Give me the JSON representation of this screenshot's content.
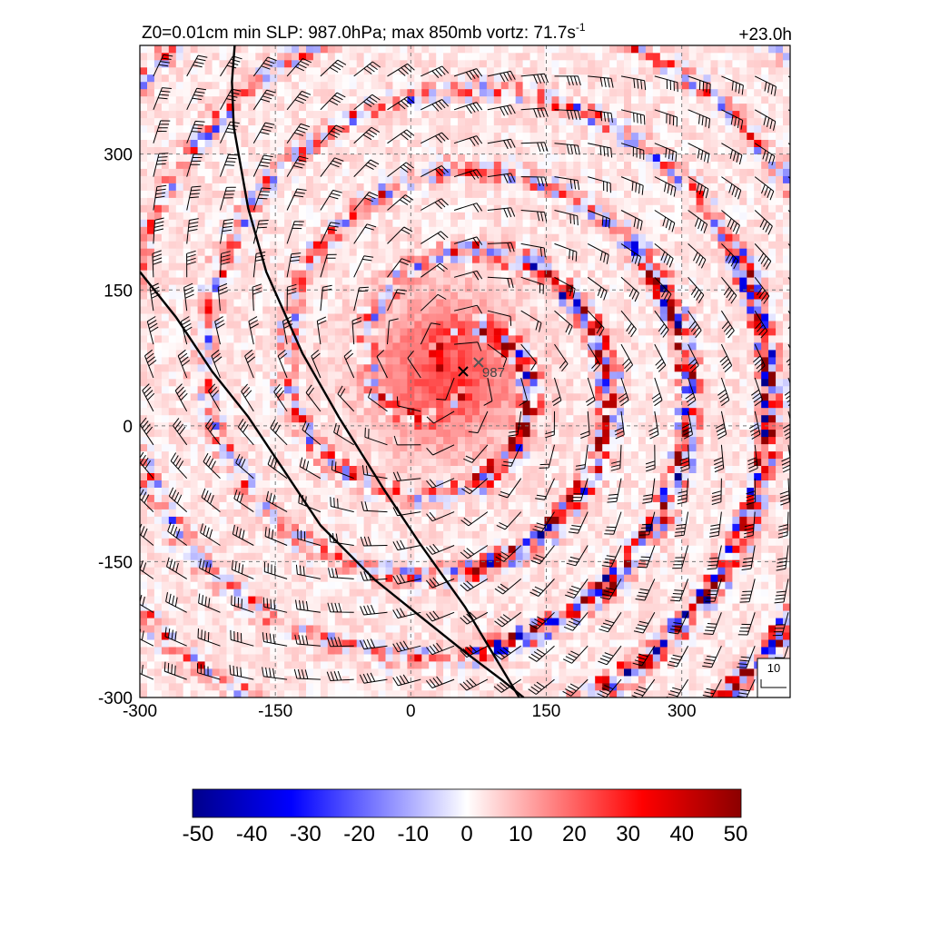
{
  "chart_data": {
    "type": "heatmap",
    "title_left": "Z0=0.01cm  min SLP: 987.0hPa; max 850mb vortz:  71.7s",
    "title_sup": "-1",
    "title_right": "+23.0h",
    "xlim": [
      -300,
      420
    ],
    "ylim": [
      -300,
      420
    ],
    "x_ticks": [
      -300,
      -150,
      0,
      150,
      300
    ],
    "y_ticks": [
      -300,
      -150,
      0,
      150,
      300
    ],
    "grid": "dashed",
    "colorbar": {
      "orientation": "horizontal",
      "position": "bottom",
      "ticks": [
        -50,
        -40,
        -30,
        -20,
        -10,
        0,
        10,
        20,
        30,
        40,
        50
      ],
      "range": [
        -50,
        50
      ],
      "colors": [
        "#00008b",
        "#0000ff",
        "#ffffff",
        "#ff0000",
        "#8b0000"
      ]
    },
    "center_markers": [
      {
        "symbol": "x",
        "x": 58,
        "y": 60,
        "color": "#000000"
      },
      {
        "symbol": "x",
        "x": 75,
        "y": 70,
        "color": "#555555",
        "label": "987"
      }
    ],
    "coastlines": [
      {
        "points": [
          [
            -195,
            420
          ],
          [
            -198,
            380
          ],
          [
            -196,
            330
          ],
          [
            -180,
            240
          ],
          [
            -160,
            170
          ],
          [
            -120,
            80
          ],
          [
            -80,
            10
          ],
          [
            -30,
            -70
          ],
          [
            10,
            -130
          ],
          [
            60,
            -200
          ],
          [
            90,
            -250
          ],
          [
            120,
            -300
          ]
        ]
      },
      {
        "points": [
          [
            -300,
            170
          ],
          [
            -260,
            120
          ],
          [
            -220,
            60
          ],
          [
            -180,
            10
          ],
          [
            -140,
            -50
          ],
          [
            -100,
            -110
          ],
          [
            -40,
            -170
          ],
          [
            10,
            -210
          ],
          [
            60,
            -250
          ],
          [
            100,
            -280
          ],
          [
            125,
            -300
          ]
        ]
      }
    ],
    "wind_reference": {
      "label": "10"
    },
    "vorticity_features": {
      "inner_core_positive": {
        "x": 40,
        "y": 60,
        "radius": 80,
        "value": 20
      },
      "rainbands": [
        {
          "radius": 130,
          "amplitude": 30
        },
        {
          "radius": 220,
          "amplitude": 25
        },
        {
          "radius": 320,
          "amplitude": 15
        }
      ]
    }
  }
}
